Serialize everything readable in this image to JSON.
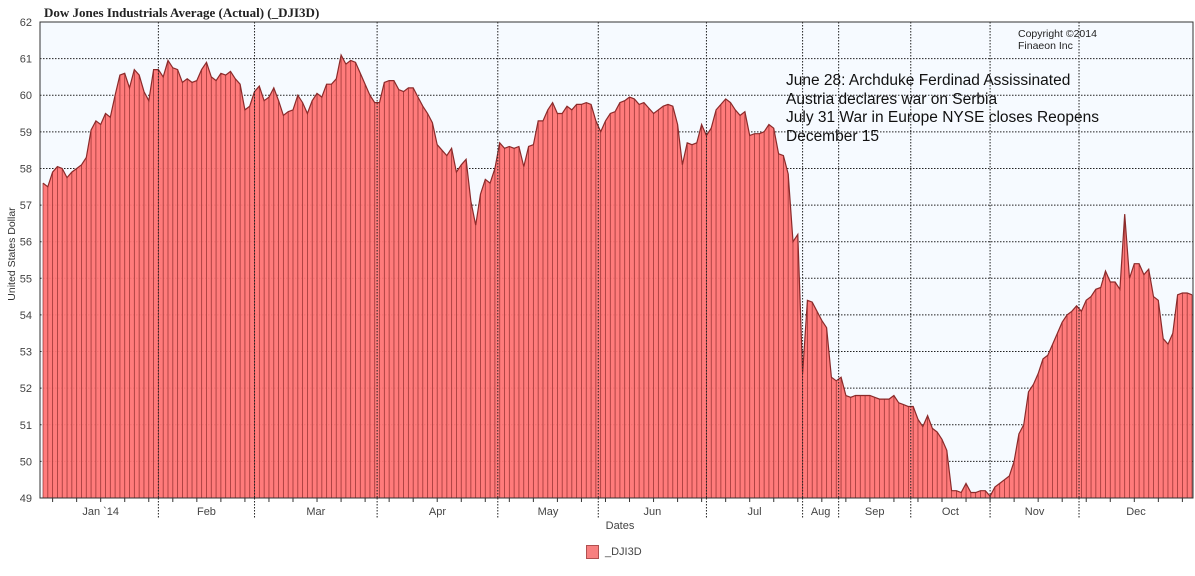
{
  "chart_data": {
    "type": "area",
    "title": "Dow Jones Industrials Average (Actual) (_DJI3D)",
    "xlabel": "Dates",
    "ylabel": "United States Dollar",
    "ylim": [
      49,
      62
    ],
    "yticks": [
      49,
      50,
      51,
      52,
      53,
      54,
      55,
      56,
      57,
      58,
      59,
      60,
      61,
      62
    ],
    "grid": true,
    "legend_position": "bottom-center",
    "series": [
      {
        "name": "_DJI3D",
        "color": "#ff7474",
        "line_color": "#8b2a2a",
        "values": [
          57.6,
          57.5,
          57.9,
          58.05,
          58.0,
          57.75,
          57.9,
          58.0,
          58.1,
          58.3,
          59.05,
          59.3,
          59.2,
          59.5,
          59.4,
          60.0,
          60.55,
          60.6,
          60.2,
          60.7,
          60.55,
          60.1,
          59.85,
          60.7,
          60.7,
          60.5,
          60.95,
          60.75,
          60.7,
          60.35,
          60.45,
          60.35,
          60.4,
          60.7,
          60.9,
          60.5,
          60.4,
          60.6,
          60.55,
          60.65,
          60.45,
          60.3,
          59.6,
          59.7,
          60.1,
          60.25,
          59.85,
          59.95,
          60.2,
          59.85,
          59.45,
          59.55,
          59.6,
          60.0,
          59.8,
          59.5,
          59.85,
          60.05,
          59.95,
          60.3,
          60.3,
          60.45,
          61.1,
          60.85,
          60.95,
          60.9,
          60.6,
          60.3,
          60.0,
          59.8,
          59.8,
          60.35,
          60.4,
          60.4,
          60.15,
          60.1,
          60.2,
          60.2,
          59.95,
          59.7,
          59.5,
          59.25,
          58.65,
          58.5,
          58.35,
          58.55,
          57.9,
          58.1,
          58.25,
          57.1,
          56.45,
          57.3,
          57.7,
          57.6,
          58.0,
          58.7,
          58.55,
          58.6,
          58.55,
          58.6,
          58.05,
          58.6,
          58.65,
          59.3,
          59.3,
          59.6,
          59.8,
          59.5,
          59.5,
          59.7,
          59.6,
          59.75,
          59.75,
          59.8,
          59.75,
          59.3,
          59.0,
          59.3,
          59.5,
          59.55,
          59.8,
          59.85,
          59.95,
          59.9,
          59.75,
          59.8,
          59.65,
          59.5,
          59.6,
          59.7,
          59.75,
          59.7,
          59.2,
          58.1,
          58.7,
          58.65,
          58.7,
          59.2,
          58.9,
          59.1,
          59.6,
          59.75,
          59.9,
          59.8,
          59.6,
          59.45,
          59.55,
          58.9,
          58.95,
          58.95,
          59.0,
          59.2,
          59.1,
          58.4,
          58.35,
          57.85,
          56.0,
          56.2,
          52.4,
          54.4,
          54.35,
          54.1,
          53.85,
          53.65,
          52.3,
          52.2,
          52.3,
          51.8,
          51.75,
          51.8,
          51.8,
          51.8,
          51.8,
          51.75,
          51.7,
          51.7,
          51.7,
          51.8,
          51.6,
          51.55,
          51.5,
          51.5,
          51.15,
          50.95,
          51.25,
          50.9,
          50.8,
          50.6,
          50.3,
          49.2,
          49.2,
          49.15,
          49.4,
          49.15,
          49.15,
          49.2,
          49.2,
          49.05,
          49.3,
          49.4,
          49.5,
          49.6,
          50.0,
          50.75,
          51.0,
          51.9,
          52.1,
          52.4,
          52.8,
          52.9,
          53.2,
          53.5,
          53.8,
          54.0,
          54.1,
          54.25,
          54.1,
          54.4,
          54.5,
          54.7,
          54.75,
          55.2,
          54.9,
          54.9,
          54.7,
          56.75,
          55.0,
          55.4,
          55.4,
          55.1,
          55.25,
          54.5,
          54.4,
          53.35,
          53.2,
          53.5,
          54.55,
          54.6,
          54.6,
          54.55
        ]
      }
    ],
    "x_unit": "trading day index (1914)",
    "months": [
      {
        "label": "Jan `14",
        "start": 0
      },
      {
        "label": "Feb",
        "start": 24
      },
      {
        "label": "Mar",
        "start": 44
      },
      {
        "label": "Apr",
        "start": 69.5
      },
      {
        "label": "May",
        "start": 94.6
      },
      {
        "label": "Jun",
        "start": 115.5
      },
      {
        "label": "Jul",
        "start": 138
      },
      {
        "label": "Aug",
        "start": 158
      },
      {
        "label": "Sep",
        "start": 165.5
      },
      {
        "label": "Oct",
        "start": 180.5
      },
      {
        "label": "Nov",
        "start": 197
      },
      {
        "label": "Dec",
        "start": 215.5
      }
    ],
    "annotations": [
      "June 28: Archduke Ferdinad Assissinated",
      "Austria declares war on Serbia",
      "July 31 War in Europe NYSE closes Reopens",
      "December 15"
    ],
    "copyright": [
      "Copyright ©2014",
      "Finaeon Inc"
    ]
  }
}
